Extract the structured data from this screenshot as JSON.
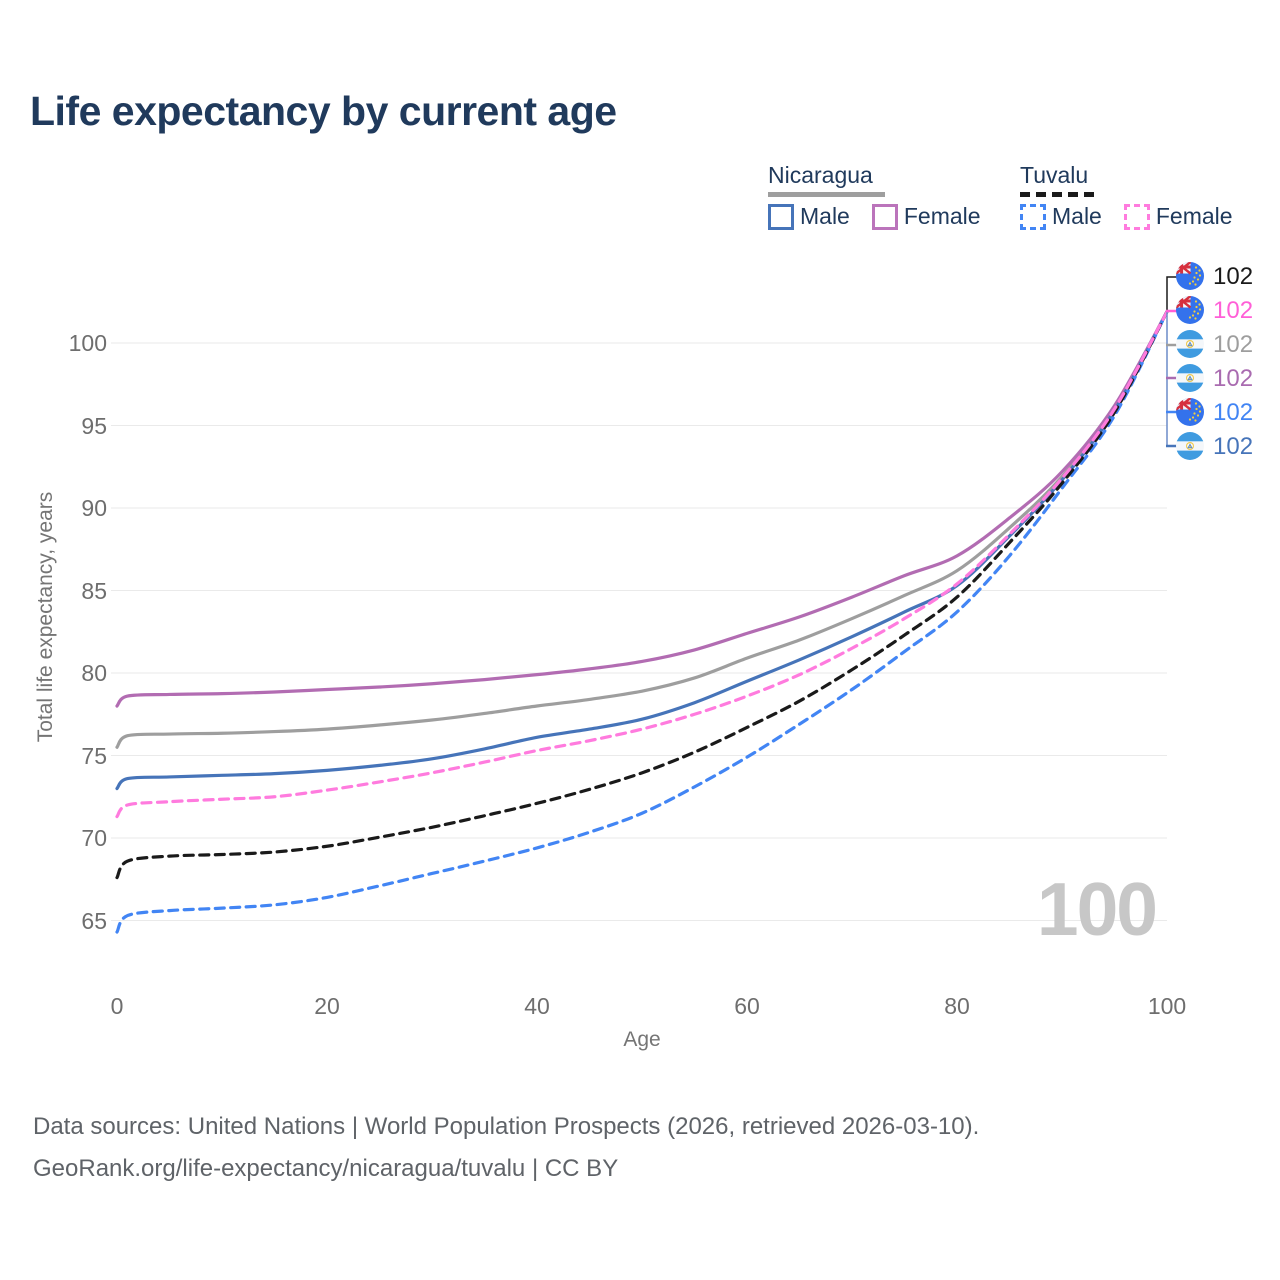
{
  "title": "Life expectancy by current age",
  "legend": {
    "groups": [
      {
        "label": "Nicaragua",
        "line": "solid",
        "color": "#9E9E9E"
      },
      {
        "label": "Tuvalu",
        "line": "dashed",
        "color": "#1A1A1A"
      }
    ],
    "items": [
      {
        "label": "Male",
        "color": "#4674B9",
        "dashed": false
      },
      {
        "label": "Female",
        "color": "#BB74BB",
        "dashed": false
      },
      {
        "label": "Male",
        "color": "#4285F4",
        "dashed": true
      },
      {
        "label": "Female",
        "color": "#FF7BDE",
        "dashed": true
      }
    ]
  },
  "y_axis": {
    "title": "Total life expectancy, years",
    "ticks": [
      65,
      70,
      75,
      80,
      85,
      90,
      95,
      100
    ]
  },
  "x_axis": {
    "title": "Age",
    "ticks": [
      0,
      20,
      40,
      60,
      80,
      100
    ]
  },
  "watermark": "100",
  "end_labels": [
    {
      "value": "102",
      "flag": "tuvalu",
      "color": "#1A1A1A",
      "series": "Tuvalu Both sexes"
    },
    {
      "value": "102",
      "flag": "tuvalu",
      "color": "#FF5FD7",
      "series": "Tuvalu Female"
    },
    {
      "value": "102",
      "flag": "nicaragua",
      "color": "#9E9E9E",
      "series": "Nicaragua Both sexes"
    },
    {
      "value": "102",
      "flag": "nicaragua",
      "color": "#A96BB0",
      "series": "Nicaragua Female"
    },
    {
      "value": "102",
      "flag": "tuvalu",
      "color": "#4285F4",
      "series": "Tuvalu Male"
    },
    {
      "value": "102",
      "flag": "nicaragua",
      "color": "#4674B9",
      "series": "Nicaragua Male"
    }
  ],
  "footer": {
    "line1": "Data sources: United Nations | World Population Prospects (2026, retrieved 2026-03-10).",
    "line2": "GeoRank.org/life-expectancy/nicaragua/tuvalu | CC BY"
  },
  "chart_data": {
    "type": "line",
    "title": "Life expectancy by current age",
    "xlabel": "Age",
    "ylabel": "Total life expectancy, years",
    "xlim": [
      0,
      100
    ],
    "ylim": [
      63,
      103
    ],
    "grid": "horizontal",
    "legend_position": "top-right",
    "x": [
      0,
      1,
      5,
      10,
      15,
      20,
      25,
      30,
      35,
      40,
      45,
      50,
      55,
      60,
      65,
      70,
      75,
      80,
      85,
      90,
      95,
      100
    ],
    "series": [
      {
        "name": "Nicaragua Female",
        "country": "Nicaragua",
        "sex": "Female",
        "color": "#B26CB2",
        "dash": false,
        "values": [
          78.0,
          78.6,
          78.7,
          78.75,
          78.85,
          79.0,
          79.15,
          79.35,
          79.6,
          79.9,
          80.25,
          80.7,
          81.4,
          82.4,
          83.4,
          84.6,
          85.9,
          87.1,
          89.4,
          92.2,
          96.2,
          101.9
        ]
      },
      {
        "name": "Nicaragua Both sexes",
        "country": "Nicaragua",
        "sex": "Both",
        "color": "#9E9E9E",
        "dash": false,
        "values": [
          75.5,
          76.2,
          76.3,
          76.35,
          76.45,
          76.6,
          76.85,
          77.15,
          77.55,
          78.0,
          78.4,
          78.9,
          79.7,
          80.9,
          82.0,
          83.3,
          84.7,
          86.2,
          88.8,
          91.9,
          96.0,
          101.9
        ]
      },
      {
        "name": "Nicaragua Male",
        "country": "Nicaragua",
        "sex": "Male",
        "color": "#4674B9",
        "dash": false,
        "values": [
          73.0,
          73.6,
          73.7,
          73.8,
          73.9,
          74.1,
          74.4,
          74.8,
          75.4,
          76.1,
          76.6,
          77.2,
          78.2,
          79.5,
          80.8,
          82.2,
          83.7,
          85.3,
          88.3,
          91.7,
          95.9,
          101.9
        ]
      },
      {
        "name": "Tuvalu Female",
        "country": "Tuvalu",
        "sex": "Female",
        "color": "#FF7BDE",
        "dash": true,
        "values": [
          71.3,
          72.0,
          72.2,
          72.35,
          72.5,
          72.9,
          73.4,
          73.95,
          74.6,
          75.3,
          75.9,
          76.6,
          77.5,
          78.6,
          79.9,
          81.5,
          83.3,
          85.4,
          88.4,
          91.8,
          96.0,
          101.9
        ]
      },
      {
        "name": "Tuvalu Both sexes",
        "country": "Tuvalu",
        "sex": "Both",
        "color": "#1A1A1A",
        "dash": true,
        "values": [
          67.6,
          68.6,
          68.9,
          69.0,
          69.15,
          69.5,
          70.05,
          70.65,
          71.35,
          72.1,
          72.95,
          73.95,
          75.2,
          76.7,
          78.3,
          80.2,
          82.3,
          84.6,
          87.9,
          91.5,
          95.8,
          101.9
        ]
      },
      {
        "name": "Tuvalu Male",
        "country": "Tuvalu",
        "sex": "Male",
        "color": "#4285F4",
        "dash": true,
        "values": [
          64.3,
          65.3,
          65.6,
          65.75,
          65.95,
          66.4,
          67.1,
          67.85,
          68.6,
          69.4,
          70.35,
          71.5,
          73.1,
          74.9,
          76.9,
          79.0,
          81.3,
          83.7,
          87.1,
          91.2,
          95.6,
          101.9
        ]
      }
    ],
    "end_values": {
      "all_series_at_age_100": 102
    }
  }
}
